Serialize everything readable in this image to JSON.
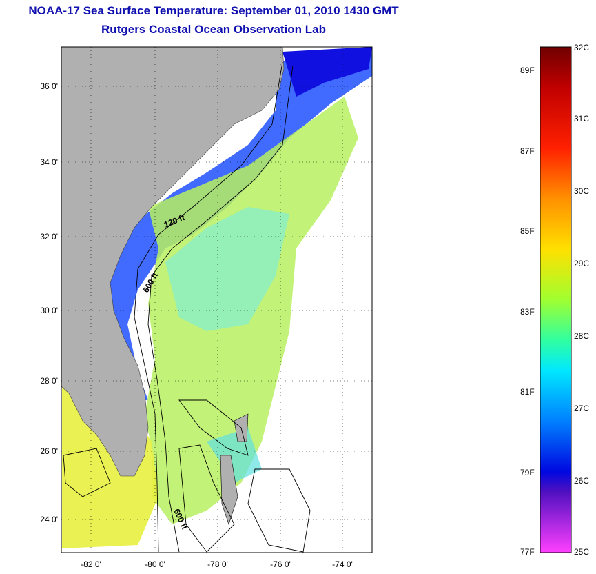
{
  "title": "NOAA-17 Sea Surface Temperature:  September 01, 2010 1430 GMT",
  "subtitle": "Rutgers Coastal Ocean Observation Lab",
  "map": {
    "lat_labels": [
      "36 0'",
      "34 0'",
      "32 0'",
      "30 0'",
      "28 0'",
      "26 0'",
      "24 0'"
    ],
    "lon_labels": [
      "-82 0'",
      "-80 0'",
      "-78 0'",
      "-76 0'",
      "-74 0'"
    ],
    "contour_labels": [
      "120 ft",
      "600 ft",
      "600 ft"
    ],
    "land_color": "#b0b0b0"
  },
  "colorbar": {
    "celsius_labels": [
      "32C",
      "31C",
      "30C",
      "29C",
      "28C",
      "27C",
      "26C",
      "25C"
    ],
    "fahrenheit_labels": [
      "89F",
      "87F",
      "85F",
      "83F",
      "81F",
      "79F",
      "77F"
    ],
    "colors": [
      "#7a0000",
      "#d00000",
      "#ff4000",
      "#ffa000",
      "#ffff00",
      "#a0ff30",
      "#30ffb0",
      "#00e0ff",
      "#0090ff",
      "#0010f0",
      "#8000c0",
      "#ff40ff"
    ]
  }
}
